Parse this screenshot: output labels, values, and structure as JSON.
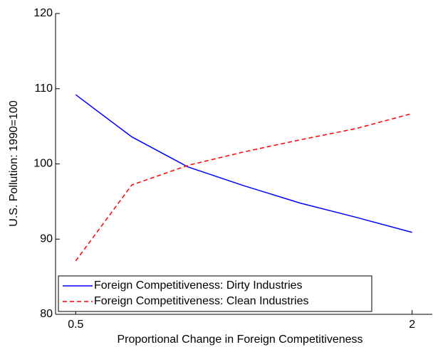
{
  "chart_data": {
    "type": "line",
    "x": [
      0.5,
      0.75,
      1.0,
      1.25,
      1.5,
      1.75,
      2.0
    ],
    "series": [
      {
        "name": "Foreign Competitiveness: Dirty Industries",
        "color": "#0000ff",
        "dash": "solid",
        "values": [
          109.2,
          103.6,
          99.6,
          97.1,
          94.8,
          92.9,
          90.9
        ]
      },
      {
        "name": "Foreign Competitiveness: Clean Industries",
        "color": "#ff0000",
        "dash": "dashed",
        "values": [
          87.1,
          97.2,
          99.8,
          101.6,
          103.2,
          104.7,
          106.7
        ]
      }
    ],
    "xlabel": "Proportional Change in Foreign Competitiveness",
    "ylabel": "U.S. Pollution: 1990=100",
    "xlim": [
      0.41,
      2.09
    ],
    "xticks": [
      0.5,
      2
    ],
    "ylim": [
      80,
      120
    ],
    "yticks": [
      80,
      90,
      100,
      110,
      120
    ],
    "legend": "lower left"
  }
}
